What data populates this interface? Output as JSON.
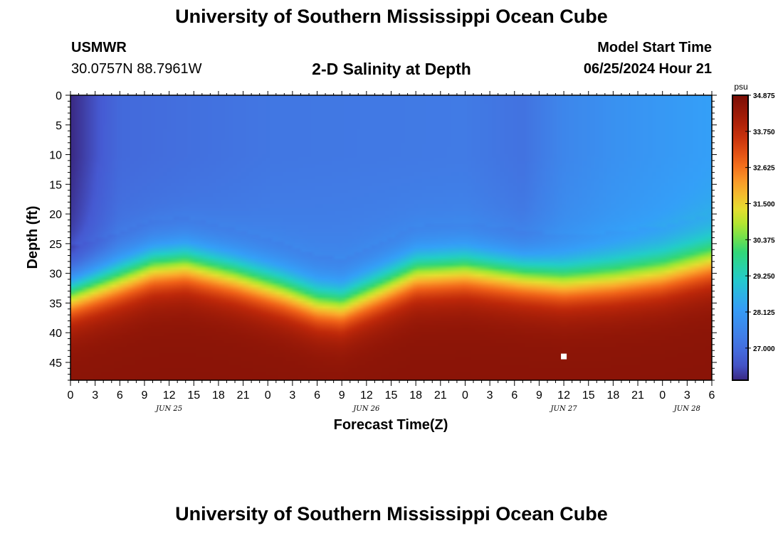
{
  "page": {
    "title": "University of Southern Mississippi Ocean Cube",
    "footer_title": "University of Southern Mississippi Ocean Cube",
    "station": "USMWR",
    "coords": "30.0757N  88.7961W",
    "subtitle": "2-D Salinity at Depth",
    "model_label": "Model Start Time",
    "model_value": "06/25/2024 Hour 21"
  },
  "chart_data": {
    "type": "heatmap",
    "title": "2-D Salinity at Depth",
    "xlabel": "Forecast Time(Z)",
    "ylabel": "Depth (ft)",
    "x_hours": [
      0,
      3,
      6,
      9,
      12,
      15,
      18,
      21,
      24,
      27,
      30,
      33,
      36,
      39,
      42,
      45,
      48,
      51,
      54,
      57,
      60,
      63,
      66,
      69,
      72,
      75,
      78
    ],
    "x_tick_labels": [
      "0",
      "3",
      "6",
      "9",
      "12",
      "15",
      "18",
      "21",
      "0",
      "3",
      "6",
      "9",
      "12",
      "15",
      "18",
      "21",
      "0",
      "3",
      "6",
      "9",
      "12",
      "15",
      "18",
      "21",
      "0",
      "3",
      "6"
    ],
    "date_labels": [
      {
        "hour": 12,
        "label": "JUN 25"
      },
      {
        "hour": 36,
        "label": "JUN 26"
      },
      {
        "hour": 60,
        "label": "JUN 27"
      },
      {
        "hour": 75,
        "label": "JUN 28"
      }
    ],
    "xlim": [
      0,
      78
    ],
    "ylim": [
      0,
      48
    ],
    "y_ticks": [
      0,
      5,
      10,
      15,
      20,
      25,
      30,
      35,
      40,
      45
    ],
    "colorbar": {
      "unit": "psu",
      "min": 26.0,
      "max": 34.875,
      "tick_values": [
        34.875,
        33.75,
        32.625,
        31.5,
        30.375,
        29.25,
        28.125,
        27.0
      ],
      "tick_labels": [
        "34.875",
        "33.750",
        "32.625",
        "31.500",
        "30.375",
        "29.250",
        "28.125",
        "27.000"
      ]
    },
    "halocline_depth_ft": [
      {
        "hour": 0,
        "depth": 33.5
      },
      {
        "hour": 6,
        "depth": 31
      },
      {
        "hour": 10,
        "depth": 29
      },
      {
        "hour": 14,
        "depth": 28.5
      },
      {
        "hour": 20,
        "depth": 30.5
      },
      {
        "hour": 26,
        "depth": 33
      },
      {
        "hour": 30,
        "depth": 35
      },
      {
        "hour": 33,
        "depth": 35.5
      },
      {
        "hour": 38,
        "depth": 32.5
      },
      {
        "hour": 42,
        "depth": 30
      },
      {
        "hour": 48,
        "depth": 29.5
      },
      {
        "hour": 54,
        "depth": 30.5
      },
      {
        "hour": 60,
        "depth": 31.5
      },
      {
        "hour": 66,
        "depth": 31
      },
      {
        "hour": 72,
        "depth": 30
      },
      {
        "hour": 78,
        "depth": 28
      }
    ],
    "surface_salinity_psu": [
      {
        "hour": 0,
        "value": 26.0
      },
      {
        "hour": 6,
        "value": 26.9
      },
      {
        "hour": 24,
        "value": 27.2
      },
      {
        "hour": 48,
        "value": 27.3
      },
      {
        "hour": 55,
        "value": 27.1
      },
      {
        "hour": 60,
        "value": 27.6
      },
      {
        "hour": 66,
        "value": 27.9
      },
      {
        "hour": 78,
        "value": 28.3
      }
    ],
    "bottom_salinity_psu": 34.6,
    "marker": {
      "hour": 60,
      "depth": 44
    }
  }
}
